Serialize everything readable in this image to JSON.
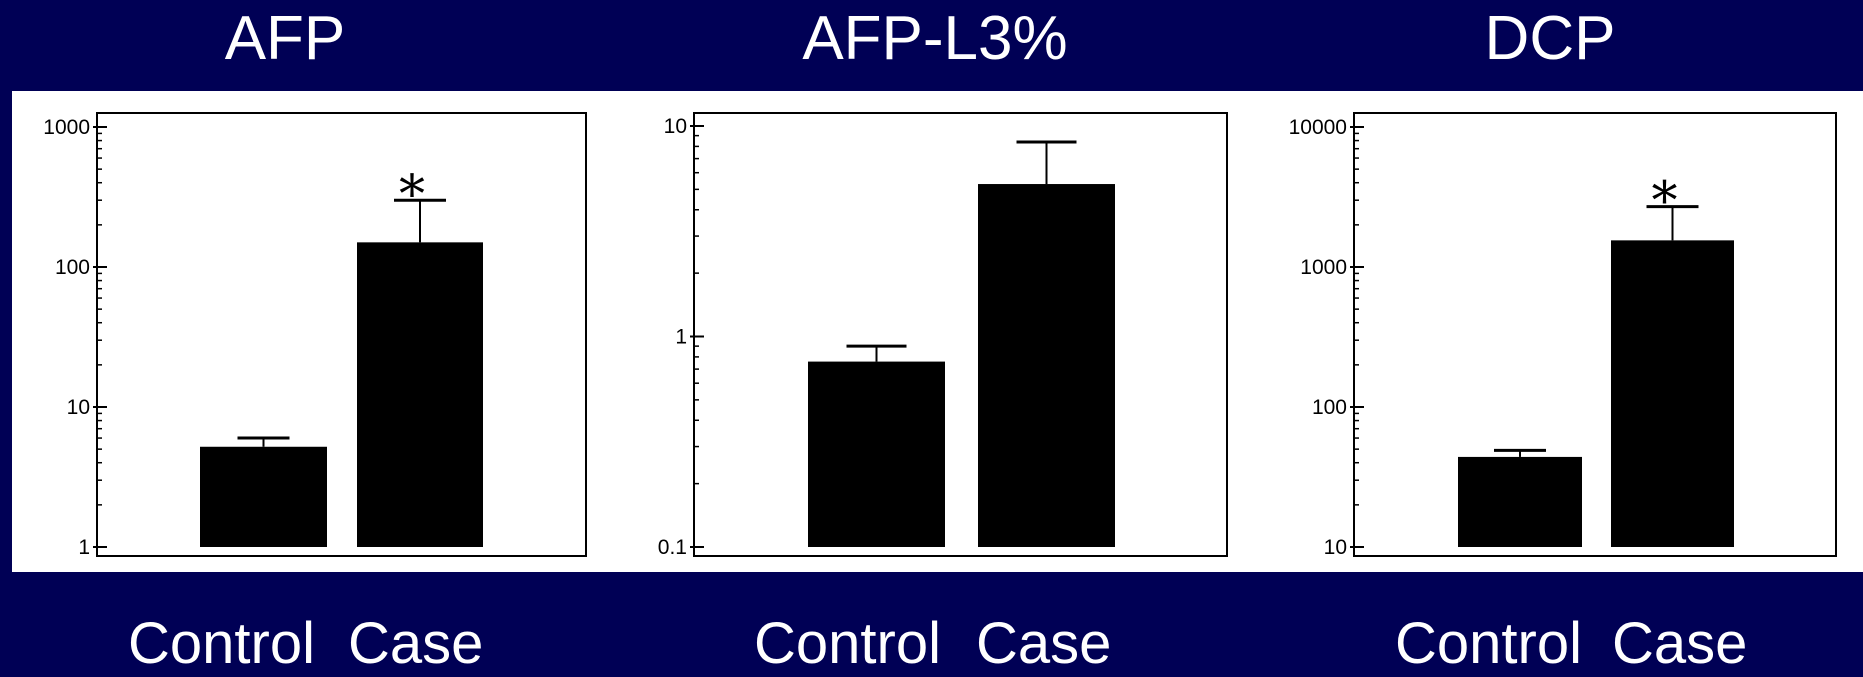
{
  "colors": {
    "background": "#000055",
    "panel": "#ffffff",
    "bars": "#000000",
    "text": "#ffffff"
  },
  "chart_data": [
    {
      "type": "bar",
      "title": "AFP",
      "categories": [
        "Control",
        "Case"
      ],
      "values": [
        5.2,
        150
      ],
      "error_upper": [
        6.0,
        300
      ],
      "significance": [
        "",
        "*"
      ],
      "yscale": "log",
      "ylim": [
        1,
        1000
      ],
      "yticks": [
        "1",
        "10",
        "100",
        "1000"
      ]
    },
    {
      "type": "bar",
      "title": "AFP-L3%",
      "categories": [
        "Control",
        "Case"
      ],
      "values": [
        0.76,
        5.3
      ],
      "error_upper": [
        0.9,
        8.4
      ],
      "significance": [
        "",
        ""
      ],
      "yscale": "log",
      "ylim": [
        0.1,
        10
      ],
      "yticks": [
        "0.1",
        "1",
        "10"
      ]
    },
    {
      "type": "bar",
      "title": "DCP",
      "categories": [
        "Control",
        "Case"
      ],
      "values": [
        44,
        1550
      ],
      "error_upper": [
        49,
        2700
      ],
      "significance": [
        "",
        "*"
      ],
      "yscale": "log",
      "ylim": [
        10,
        10000
      ],
      "yticks": [
        "10",
        "100",
        "1000",
        "10000"
      ]
    }
  ]
}
